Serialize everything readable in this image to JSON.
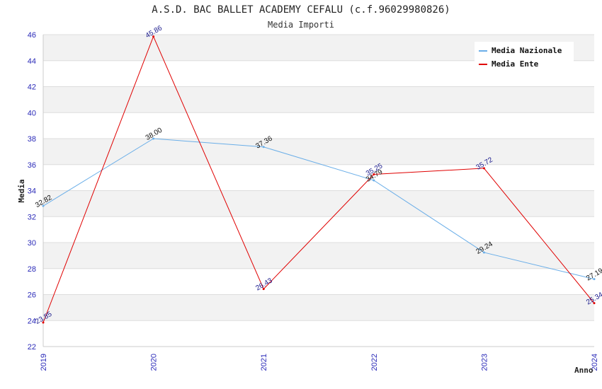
{
  "chart_data": {
    "type": "line",
    "title": "A.S.D. BAC BALLET ACADEMY CEFALU (c.f.96029980826)",
    "subtitle": "Media Importi",
    "ylabel": "Media",
    "xlabel": "Anno",
    "x": [
      "2019",
      "2020",
      "2021",
      "2022",
      "2023",
      "2024"
    ],
    "ylim": [
      22,
      46
    ],
    "yticks": [
      22,
      24,
      26,
      28,
      30,
      32,
      34,
      36,
      38,
      40,
      42,
      44,
      46
    ],
    "grid": true,
    "legend_position": "top-right",
    "series": [
      {
        "name": "Media Nazionale",
        "color": "#6aaee8",
        "label_color": "#111111",
        "values": [
          32.82,
          38.0,
          37.36,
          34.79,
          29.24,
          27.19
        ],
        "labels": [
          "32.82",
          "38.00",
          "37.36",
          "34.79",
          "29.24",
          "27.19"
        ]
      },
      {
        "name": "Media Ente",
        "color": "#e00000",
        "label_color": "#1a1a8c",
        "values": [
          23.85,
          45.86,
          26.43,
          35.25,
          35.72,
          25.34
        ],
        "labels": [
          "23.85",
          "45.86",
          "26.43",
          "35.25",
          "35.72",
          "25.34"
        ]
      }
    ]
  }
}
